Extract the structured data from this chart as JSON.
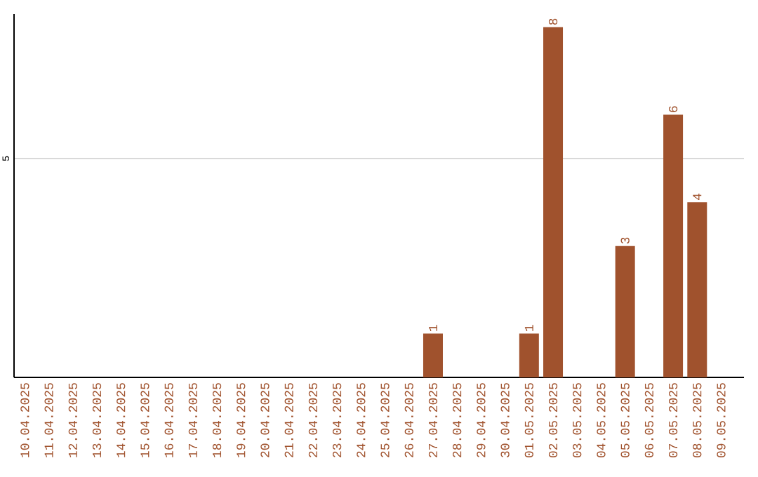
{
  "chart_data": {
    "type": "bar",
    "categories": [
      "10.04.2025",
      "11.04.2025",
      "12.04.2025",
      "13.04.2025",
      "14.04.2025",
      "15.04.2025",
      "16.04.2025",
      "17.04.2025",
      "18.04.2025",
      "19.04.2025",
      "20.04.2025",
      "21.04.2025",
      "22.04.2025",
      "23.04.2025",
      "24.04.2025",
      "25.04.2025",
      "26.04.2025",
      "27.04.2025",
      "28.04.2025",
      "29.04.2025",
      "30.04.2025",
      "01.05.2025",
      "02.05.2025",
      "03.05.2025",
      "04.05.2025",
      "05.05.2025",
      "06.05.2025",
      "07.05.2025",
      "08.05.2025",
      "09.05.2025"
    ],
    "values": [
      null,
      null,
      null,
      null,
      null,
      null,
      null,
      null,
      null,
      null,
      null,
      null,
      null,
      null,
      null,
      null,
      null,
      1,
      null,
      null,
      null,
      1,
      8,
      null,
      null,
      3,
      null,
      6,
      4,
      null
    ],
    "data_labels": true,
    "color": "#a0522d",
    "ylim": [
      0,
      8.3
    ],
    "yticks": [
      5
    ],
    "grid": "y"
  }
}
